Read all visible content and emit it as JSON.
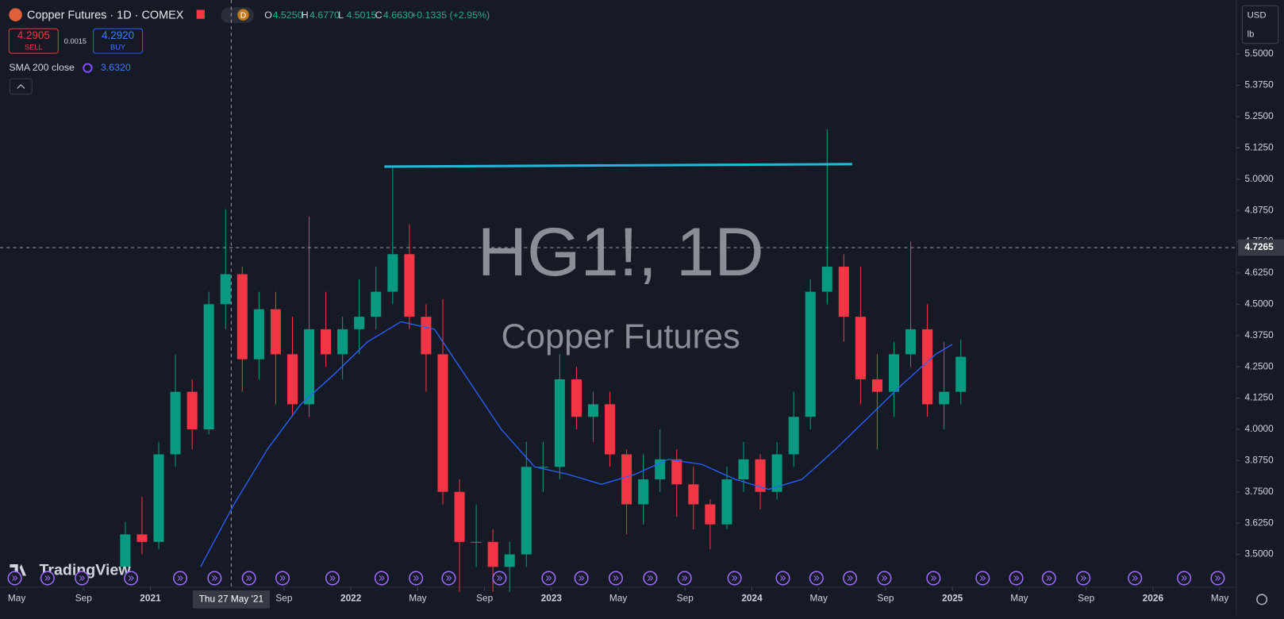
{
  "header": {
    "symbol": "Copper Futures · 1D · COMEX",
    "interval_badge": "D",
    "ohlc": [
      {
        "key": "O",
        "value": "4.5250"
      },
      {
        "key": "H",
        "value": "4.6770"
      },
      {
        "key": "L",
        "value": "4.5015"
      },
      {
        "key": "C",
        "value": "4.6630"
      }
    ],
    "change": "+0.1335 (+2.95%)",
    "sell_price": "4.2905",
    "sell": "SELL",
    "spread": "0.0015",
    "buy_price": "4.2920",
    "buy": "BUY",
    "indicator": "SMA 200 close",
    "indicator_value": "3.6320",
    "currency": "USD",
    "unit": "lb",
    "brand": "TradingView"
  },
  "chart_data": {
    "type": "candlestick",
    "watermark": "HG1!, 1D",
    "watermark_subtitle": "Copper Futures",
    "x": [
      "2020-11",
      "2020-12",
      "2021-01",
      "2021-02",
      "2021-03",
      "2021-04",
      "2021-05",
      "2021-06",
      "2021-07",
      "2021-08",
      "2021-09",
      "2021-10",
      "2021-11",
      "2021-12",
      "2022-01",
      "2022-02",
      "2022-03",
      "2022-04",
      "2022-05",
      "2022-06",
      "2022-07",
      "2022-08",
      "2022-09",
      "2022-10",
      "2022-11",
      "2022-12",
      "2023-01",
      "2023-02",
      "2023-03",
      "2023-04",
      "2023-05",
      "2023-06",
      "2023-07",
      "2023-08",
      "2023-09",
      "2023-10",
      "2023-11",
      "2023-12",
      "2024-01",
      "2024-02",
      "2024-03",
      "2024-04",
      "2024-05",
      "2024-06",
      "2024-07",
      "2024-08",
      "2024-09",
      "2024-10",
      "2024-11",
      "2024-12",
      "2025-01"
    ],
    "open": [
      3.45,
      3.58,
      3.55,
      3.9,
      4.15,
      4.0,
      4.5,
      4.62,
      4.28,
      4.48,
      4.3,
      4.1,
      4.4,
      4.3,
      4.4,
      4.45,
      4.55,
      4.7,
      4.45,
      4.3,
      3.75,
      3.55,
      3.55,
      3.45,
      3.5,
      3.85,
      3.85,
      4.2,
      4.05,
      4.1,
      3.9,
      3.7,
      3.8,
      3.88,
      3.78,
      3.7,
      3.62,
      3.8,
      3.88,
      3.75,
      3.9,
      4.05,
      4.55,
      4.65,
      4.45,
      4.2,
      4.15,
      4.3,
      4.4,
      4.1,
      4.15
    ],
    "high": [
      3.63,
      3.73,
      3.95,
      4.3,
      4.2,
      4.55,
      4.88,
      4.65,
      4.55,
      4.55,
      4.45,
      4.85,
      4.55,
      4.45,
      4.6,
      4.65,
      5.05,
      4.82,
      4.5,
      4.52,
      3.8,
      3.7,
      3.6,
      3.55,
      3.95,
      3.95,
      4.3,
      4.25,
      4.15,
      4.15,
      3.92,
      3.9,
      4.0,
      3.92,
      3.85,
      3.72,
      3.85,
      3.95,
      3.9,
      3.95,
      4.15,
      4.6,
      5.2,
      4.7,
      4.65,
      4.3,
      4.35,
      4.75,
      4.5,
      4.35,
      4.36
    ],
    "low": [
      3.4,
      3.5,
      3.52,
      3.85,
      3.92,
      3.98,
      4.4,
      4.15,
      4.2,
      4.1,
      4.05,
      4.05,
      4.25,
      4.2,
      4.3,
      4.4,
      4.5,
      4.4,
      4.15,
      3.7,
      3.35,
      3.45,
      3.35,
      3.35,
      3.45,
      3.75,
      3.8,
      4.0,
      3.95,
      3.85,
      3.58,
      3.62,
      3.75,
      3.65,
      3.6,
      3.52,
      3.6,
      3.75,
      3.68,
      3.72,
      3.85,
      4.0,
      4.5,
      4.35,
      4.1,
      3.92,
      4.05,
      4.25,
      4.05,
      4.0,
      4.1
    ],
    "close": [
      3.58,
      3.55,
      3.9,
      4.15,
      4.0,
      4.5,
      4.62,
      4.28,
      4.48,
      4.3,
      4.1,
      4.4,
      4.3,
      4.4,
      4.45,
      4.55,
      4.7,
      4.45,
      4.3,
      3.75,
      3.55,
      3.55,
      3.45,
      3.5,
      3.85,
      3.85,
      4.2,
      4.05,
      4.1,
      3.9,
      3.7,
      3.8,
      3.88,
      3.78,
      3.7,
      3.62,
      3.8,
      3.88,
      3.75,
      3.9,
      4.05,
      4.55,
      4.65,
      4.45,
      4.2,
      4.15,
      4.3,
      4.4,
      4.1,
      4.15,
      4.29
    ],
    "up_color": "#089981",
    "down_color": "#f23645",
    "sma": {
      "color": "#2962ff",
      "x": [
        "2021-04",
        "2021-06",
        "2021-08",
        "2021-10",
        "2021-12",
        "2022-02",
        "2022-04",
        "2022-06",
        "2022-08",
        "2022-10",
        "2022-12",
        "2023-02",
        "2023-04",
        "2023-06",
        "2023-08",
        "2023-10",
        "2023-12",
        "2024-02",
        "2024-04",
        "2024-06",
        "2024-08",
        "2024-10",
        "2024-12",
        "2025-01"
      ],
      "values": [
        3.45,
        3.7,
        3.92,
        4.1,
        4.22,
        4.35,
        4.43,
        4.4,
        4.2,
        4.0,
        3.85,
        3.82,
        3.78,
        3.82,
        3.88,
        3.86,
        3.8,
        3.76,
        3.8,
        3.92,
        4.05,
        4.18,
        4.3,
        4.34
      ]
    },
    "hline": {
      "color": "#1fb8d8",
      "x": [
        "2022-03",
        "2024-07"
      ],
      "values": [
        5.05,
        5.06
      ]
    },
    "crosshair": {
      "x": "2021-05-27",
      "x_label": "Thu 27 May '21",
      "y": 4.7265
    },
    "xlim": [
      "2020-04",
      "2026-06"
    ],
    "ylim": [
      3.369,
      5.716
    ],
    "xticks": [
      {
        "value": "2020-05",
        "label": "May"
      },
      {
        "value": "2020-09",
        "label": "Sep"
      },
      {
        "value": "2021-01",
        "label": "2021"
      },
      {
        "value": "2021-09",
        "label": "Sep"
      },
      {
        "value": "2022-01",
        "label": "2022"
      },
      {
        "value": "2022-05",
        "label": "May"
      },
      {
        "value": "2022-09",
        "label": "Sep"
      },
      {
        "value": "2023-01",
        "label": "2023"
      },
      {
        "value": "2023-05",
        "label": "May"
      },
      {
        "value": "2023-09",
        "label": "Sep"
      },
      {
        "value": "2024-01",
        "label": "2024"
      },
      {
        "value": "2024-05",
        "label": "May"
      },
      {
        "value": "2024-09",
        "label": "Sep"
      },
      {
        "value": "2025-01",
        "label": "2025"
      },
      {
        "value": "2025-05",
        "label": "May"
      },
      {
        "value": "2025-09",
        "label": "Sep"
      },
      {
        "value": "2026-01",
        "label": "2026"
      },
      {
        "value": "2026-05",
        "label": "May"
      }
    ],
    "yticks": [
      {
        "value": 3.5,
        "label": "3.5000"
      },
      {
        "value": 3.625,
        "label": "3.6250"
      },
      {
        "value": 3.75,
        "label": "3.7500"
      },
      {
        "value": 3.875,
        "label": "3.8750"
      },
      {
        "value": 4,
        "label": "4.0000"
      },
      {
        "value": 4.125,
        "label": "4.1250"
      },
      {
        "value": 4.25,
        "label": "4.2500"
      },
      {
        "value": 4.375,
        "label": "4.3750"
      },
      {
        "value": 4.5,
        "label": "4.5000"
      },
      {
        "value": 4.625,
        "label": "4.6250"
      },
      {
        "value": 4.75,
        "label": "4.7500"
      },
      {
        "value": 4.875,
        "label": "4.8750"
      },
      {
        "value": 5,
        "label": "5.0000"
      },
      {
        "value": 5.125,
        "label": "5.1250"
      },
      {
        "value": 5.25,
        "label": "5.2500"
      },
      {
        "value": 5.375,
        "label": "5.3750"
      },
      {
        "value": 5.5,
        "label": "5.5000"
      }
    ]
  }
}
